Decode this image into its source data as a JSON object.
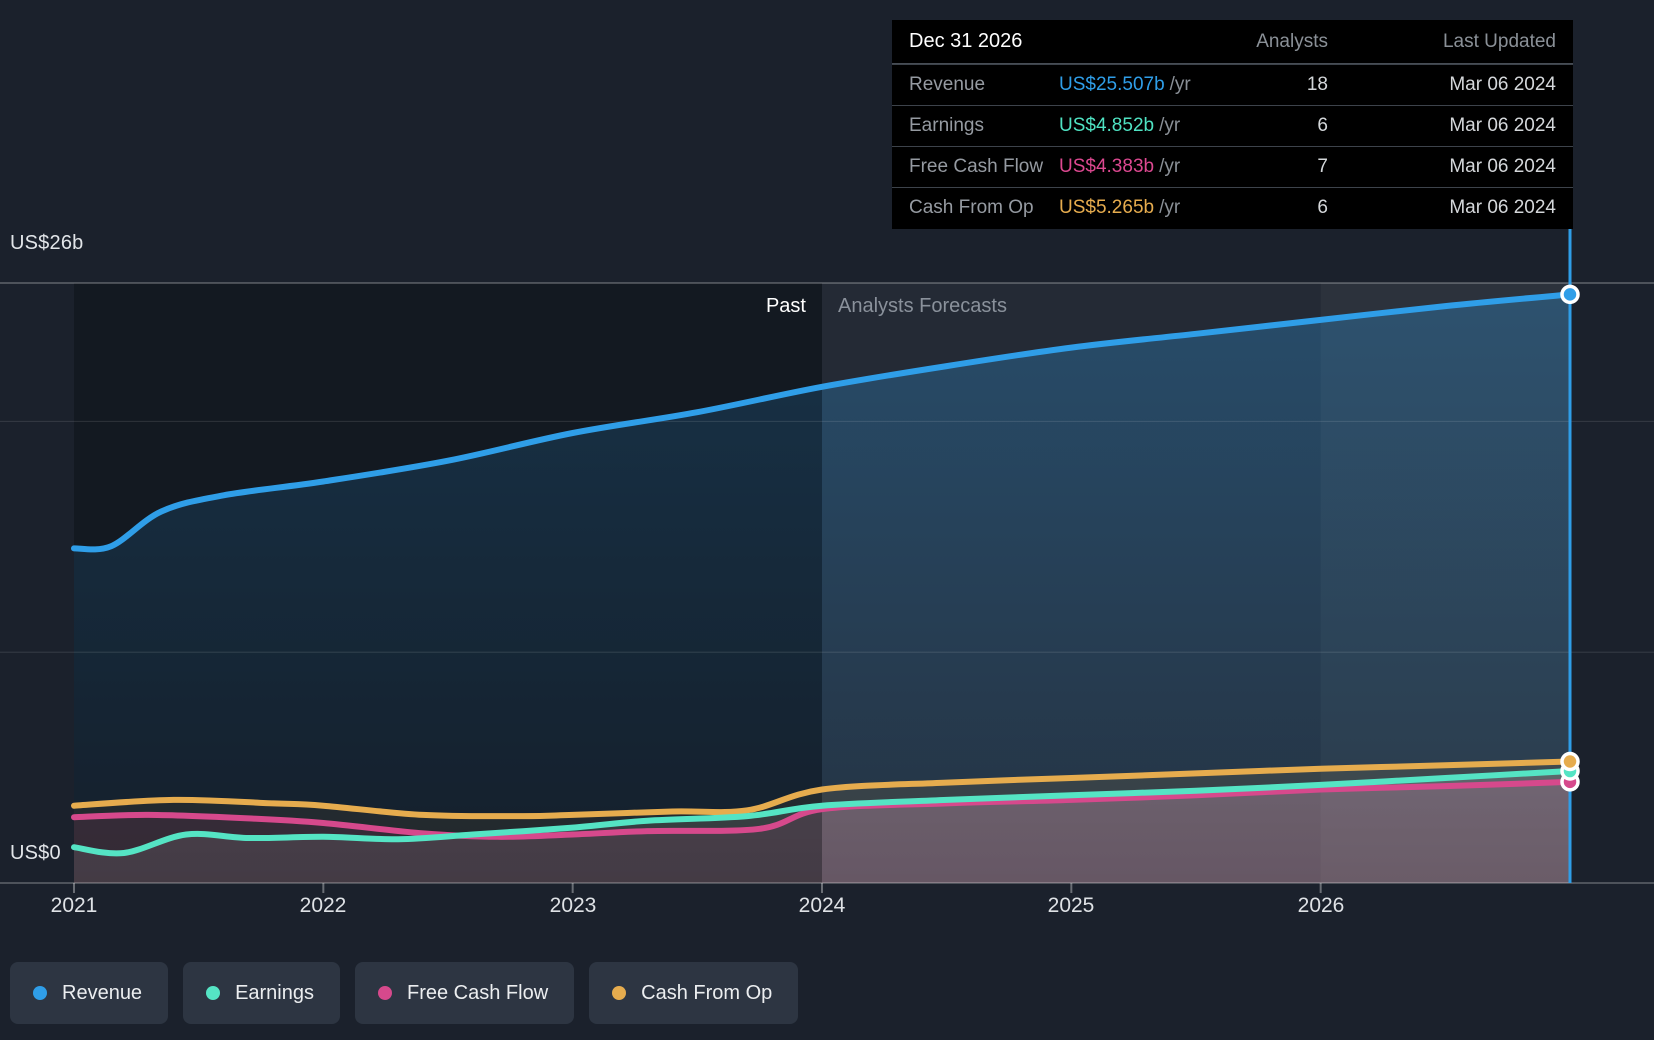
{
  "tooltip": {
    "title": "Dec 31 2026",
    "col_analysts": "Analysts",
    "col_last_updated": "Last Updated",
    "rows": [
      {
        "label": "Revenue",
        "value": "US$25.507b",
        "suffix": "/yr",
        "analysts": "18",
        "updated": "Mar 06 2024",
        "color": "#2f9ee8"
      },
      {
        "label": "Earnings",
        "value": "US$4.852b",
        "suffix": "/yr",
        "analysts": "6",
        "updated": "Mar 06 2024",
        "color": "#4fe2c2"
      },
      {
        "label": "Free Cash Flow",
        "value": "US$4.383b",
        "suffix": "/yr",
        "analysts": "7",
        "updated": "Mar 06 2024",
        "color": "#dc4890"
      },
      {
        "label": "Cash From Op",
        "value": "US$5.265b",
        "suffix": "/yr",
        "analysts": "6",
        "updated": "Mar 06 2024",
        "color": "#e6ac4e"
      }
    ]
  },
  "chart": {
    "past_label": "Past",
    "forecast_label": "Analysts Forecasts",
    "y_top_label": "US$26b",
    "y_bottom_label": "US$0",
    "x_ticks": [
      "2021",
      "2022",
      "2023",
      "2024",
      "2025",
      "2026"
    ]
  },
  "legend": [
    {
      "label": "Revenue",
      "color": "#2f9ee8"
    },
    {
      "label": "Earnings",
      "color": "#55e4c4"
    },
    {
      "label": "Free Cash Flow",
      "color": "#d6498c"
    },
    {
      "label": "Cash From Op",
      "color": "#e6ac4e"
    }
  ],
  "chart_data": {
    "type": "area",
    "title": "Past and future earnings per share, revenue and cash flow (US$, billions per year)",
    "x_unit": "year",
    "x_range": [
      2021,
      2027
    ],
    "ylim": [
      0,
      26
    ],
    "y_gridline_values": [
      0,
      10,
      20,
      26
    ],
    "y_axis_labels": {
      "top": "US$26b",
      "bottom": "US$0"
    },
    "x_tick_years": [
      2021,
      2022,
      2023,
      2024,
      2025,
      2026
    ],
    "past_forecast_boundary_year": 2024,
    "highlight_band_years": [
      2026,
      2027
    ],
    "hover_point_date": "Dec 31 2026",
    "legend_position": "bottom-left",
    "grid": true,
    "series": [
      {
        "name": "Revenue",
        "color": "#2f9ee8",
        "end_value_b": 25.507,
        "points": [
          [
            2021,
            14.5
          ],
          [
            2021.15,
            14.6
          ],
          [
            2021.35,
            16.1
          ],
          [
            2021.6,
            16.8
          ],
          [
            2022,
            17.4
          ],
          [
            2022.5,
            18.3
          ],
          [
            2023,
            19.5
          ],
          [
            2023.5,
            20.4
          ],
          [
            2024,
            21.5
          ],
          [
            2024.5,
            22.4
          ],
          [
            2025,
            23.2
          ],
          [
            2025.5,
            23.8
          ],
          [
            2026,
            24.4
          ],
          [
            2026.5,
            25.0
          ],
          [
            2027,
            25.507
          ]
        ]
      },
      {
        "name": "Cash From Op",
        "color": "#e6ac4e",
        "end_value_b": 5.265,
        "points": [
          [
            2021,
            3.35
          ],
          [
            2021.4,
            3.6
          ],
          [
            2021.8,
            3.45
          ],
          [
            2022,
            3.35
          ],
          [
            2022.4,
            2.95
          ],
          [
            2022.8,
            2.9
          ],
          [
            2023,
            2.95
          ],
          [
            2023.4,
            3.1
          ],
          [
            2023.7,
            3.15
          ],
          [
            2024,
            4.05
          ],
          [
            2024.5,
            4.35
          ],
          [
            2025,
            4.55
          ],
          [
            2025.5,
            4.75
          ],
          [
            2026,
            4.95
          ],
          [
            2026.5,
            5.1
          ],
          [
            2027,
            5.265
          ]
        ]
      },
      {
        "name": "Free Cash Flow",
        "color": "#d6498c",
        "end_value_b": 4.383,
        "points": [
          [
            2021,
            2.85
          ],
          [
            2021.3,
            2.95
          ],
          [
            2021.7,
            2.8
          ],
          [
            2022,
            2.6
          ],
          [
            2022.4,
            2.15
          ],
          [
            2022.7,
            2.0
          ],
          [
            2023,
            2.1
          ],
          [
            2023.3,
            2.25
          ],
          [
            2023.75,
            2.35
          ],
          [
            2024,
            3.2
          ],
          [
            2024.5,
            3.45
          ],
          [
            2025,
            3.6
          ],
          [
            2025.5,
            3.8
          ],
          [
            2026,
            4.05
          ],
          [
            2026.5,
            4.2
          ],
          [
            2027,
            4.383
          ]
        ]
      },
      {
        "name": "Earnings",
        "color": "#55e4c4",
        "end_value_b": 4.852,
        "points": [
          [
            2021,
            1.55
          ],
          [
            2021.2,
            1.3
          ],
          [
            2021.45,
            2.1
          ],
          [
            2021.7,
            1.95
          ],
          [
            2022,
            2.0
          ],
          [
            2022.3,
            1.9
          ],
          [
            2022.6,
            2.1
          ],
          [
            2023,
            2.4
          ],
          [
            2023.3,
            2.7
          ],
          [
            2023.7,
            2.9
          ],
          [
            2024,
            3.35
          ],
          [
            2024.5,
            3.6
          ],
          [
            2025,
            3.8
          ],
          [
            2025.5,
            4.0
          ],
          [
            2026,
            4.25
          ],
          [
            2026.5,
            4.55
          ],
          [
            2027,
            4.852
          ]
        ]
      }
    ]
  }
}
